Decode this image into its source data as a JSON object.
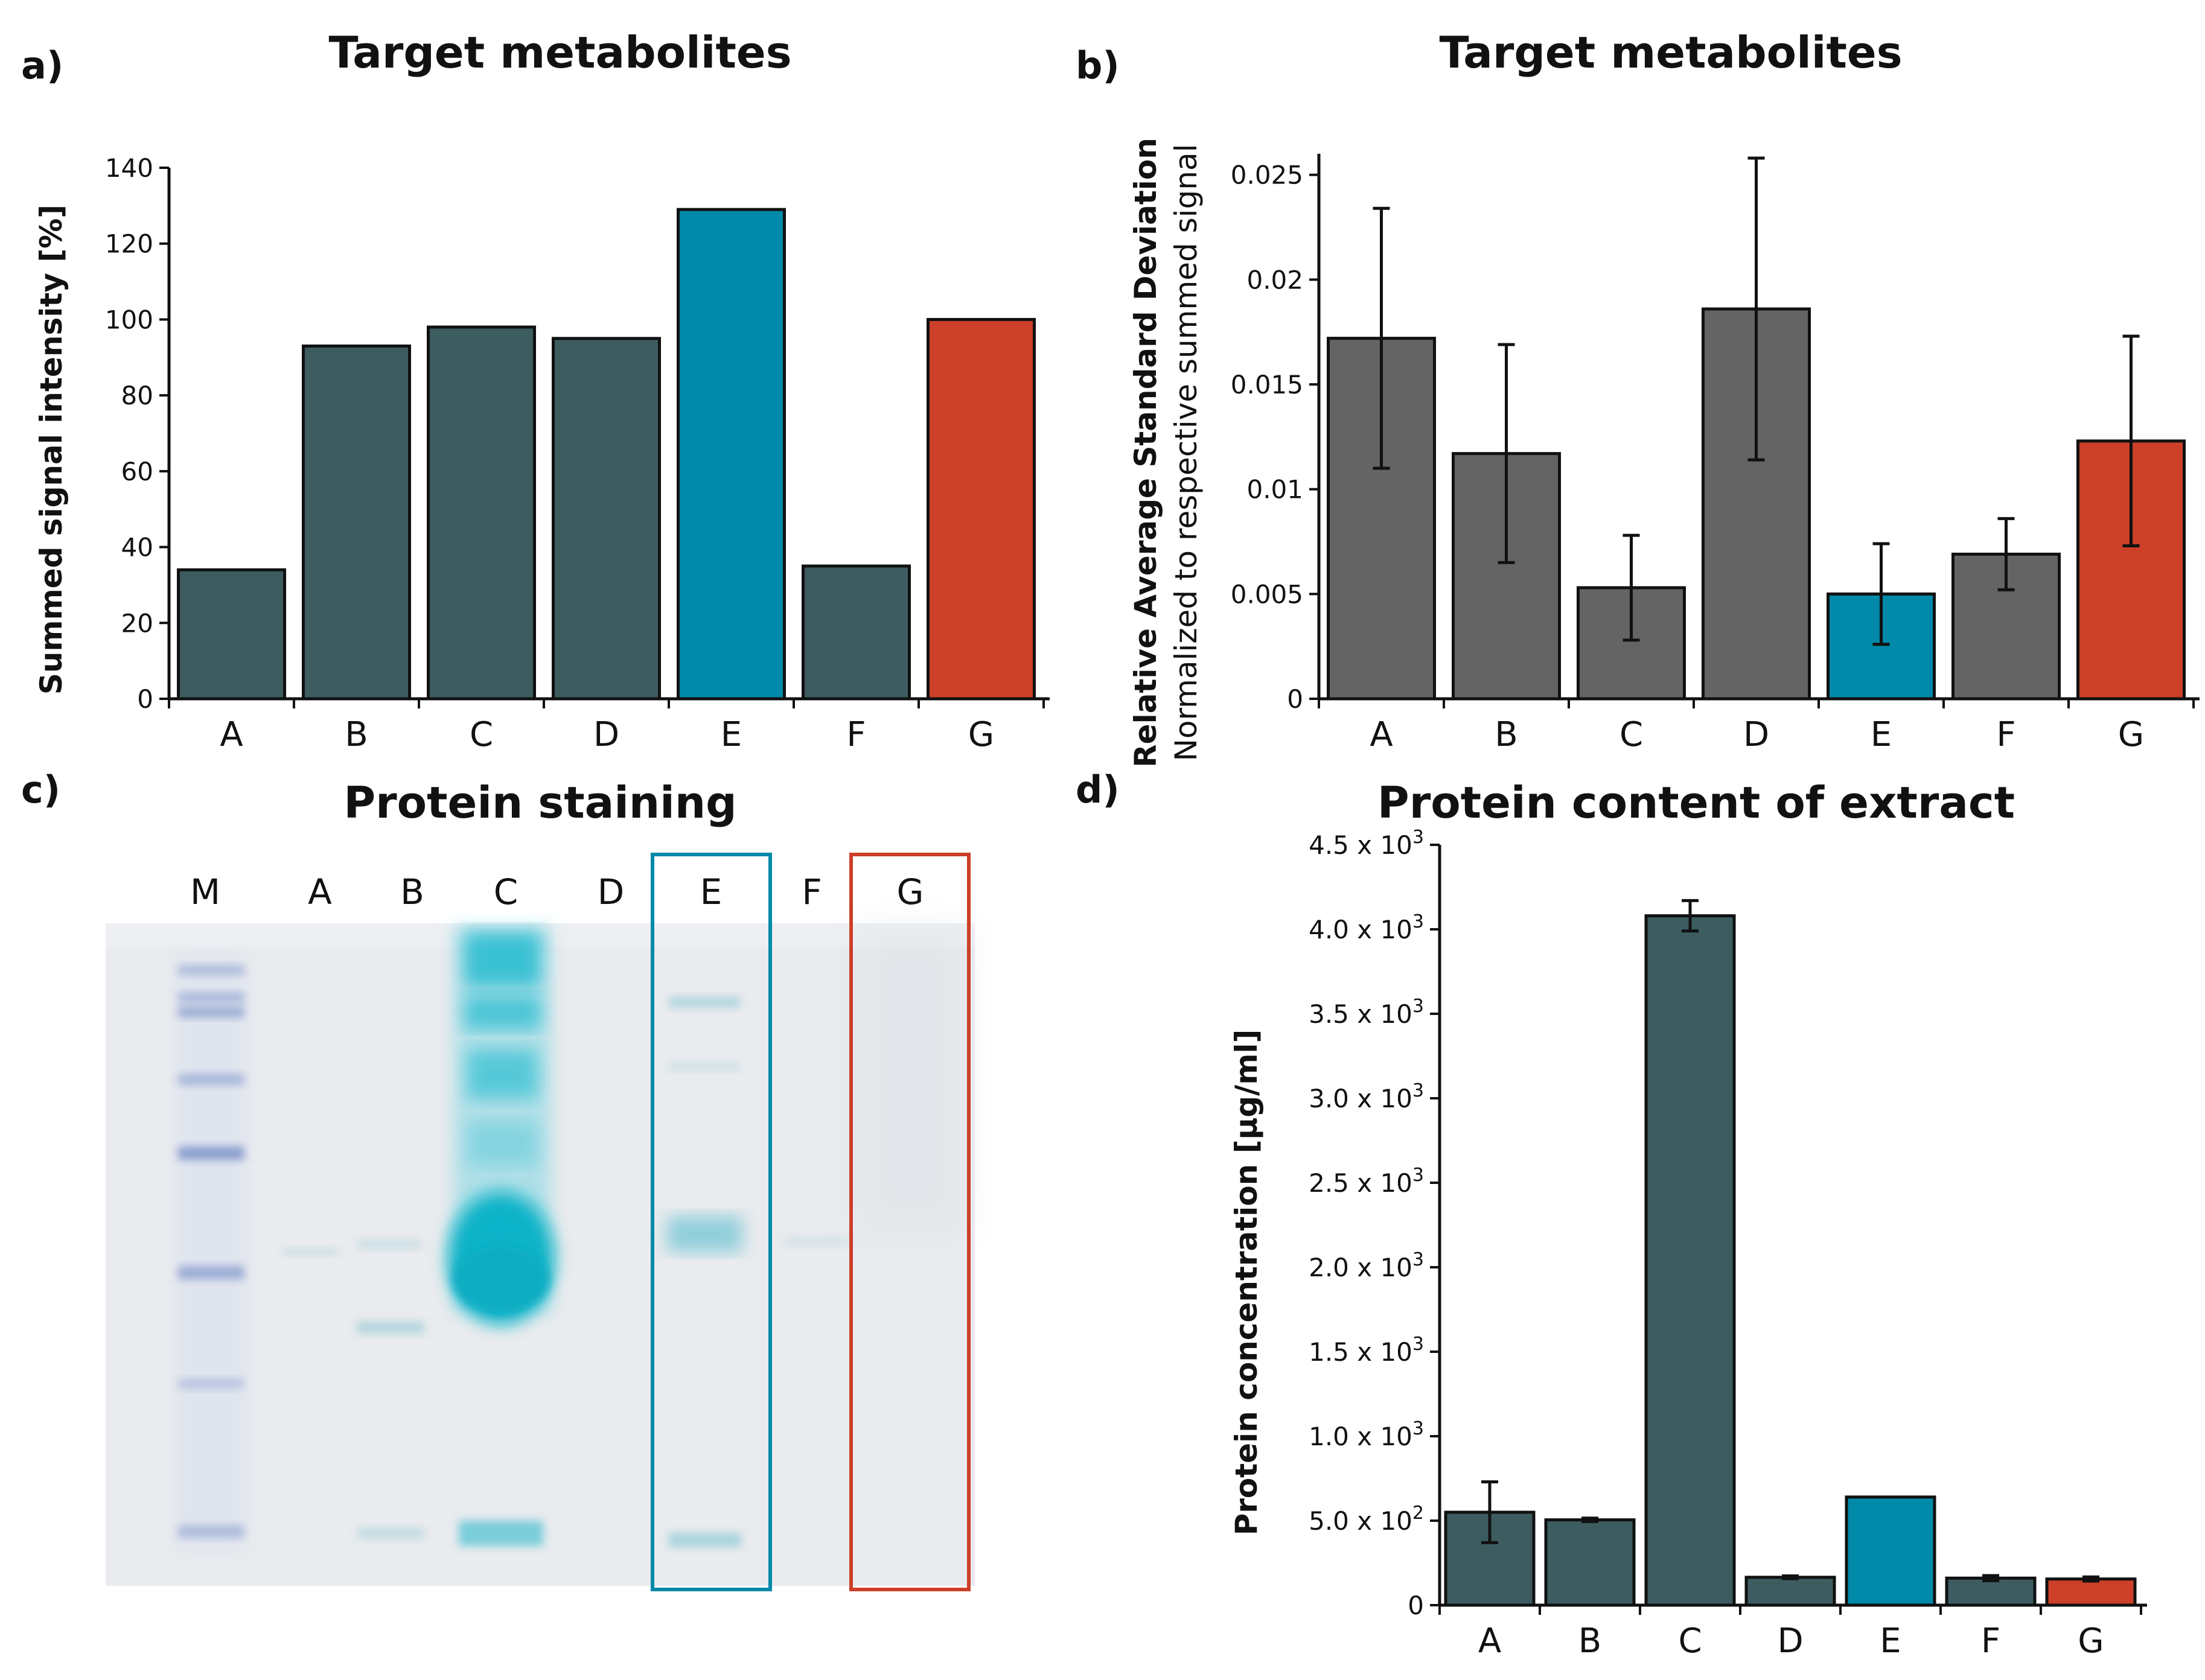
{
  "colors": {
    "dark_teal": "#3c5c60",
    "blue": "#0089a8",
    "red": "#cc3f28",
    "gray": "#646464",
    "axis": "#111111",
    "gel_bg": "#e9ebee",
    "stain": "#17b3c8",
    "marker": "#6e86c4"
  },
  "panels": {
    "a": {
      "label": "a)",
      "title": "Target metabolites"
    },
    "b": {
      "label": "b)",
      "title": "Target metabolites"
    },
    "c": {
      "label": "c)",
      "title": "Protein staining",
      "lanes": [
        "M",
        "A",
        "B",
        "C",
        "D",
        "E",
        "F",
        "G"
      ]
    },
    "d": {
      "label": "d)",
      "title": "Protein content of extract"
    }
  },
  "chart_data": [
    {
      "id": "a",
      "type": "bar",
      "title": "Target metabolites",
      "categories": [
        "A",
        "B",
        "C",
        "D",
        "E",
        "F",
        "G"
      ],
      "values": [
        34,
        93,
        98,
        95,
        129,
        35,
        100
      ],
      "bar_colors": [
        "dark_teal",
        "dark_teal",
        "dark_teal",
        "dark_teal",
        "blue",
        "dark_teal",
        "red"
      ],
      "ylabel": "Summed signal intensity [%]",
      "ylim": [
        0,
        140
      ],
      "yticks": [
        "0",
        "20",
        "40",
        "60",
        "80",
        "100",
        "120",
        "140"
      ],
      "ytick_values": [
        0,
        20,
        40,
        60,
        80,
        100,
        120,
        140
      ]
    },
    {
      "id": "b",
      "type": "bar",
      "title": "Target metabolites",
      "categories": [
        "A",
        "B",
        "C",
        "D",
        "E",
        "F",
        "G"
      ],
      "values": [
        0.0172,
        0.0117,
        0.0053,
        0.0186,
        0.005,
        0.0069,
        0.0123
      ],
      "errors": [
        0.0062,
        0.0052,
        0.0025,
        0.0072,
        0.0024,
        0.0017,
        0.005
      ],
      "bar_colors": [
        "gray",
        "gray",
        "gray",
        "gray",
        "blue",
        "gray",
        "red"
      ],
      "ylabel": "Relative Average Standard Deviation",
      "ylabel2": "Normalized to respective summed signal",
      "ylim": [
        0,
        0.026
      ],
      "yticks": [
        "0",
        "0.005",
        "0.01",
        "0.015",
        "0.02",
        "0.025"
      ],
      "ytick_values": [
        0,
        0.005,
        0.01,
        0.015,
        0.02,
        0.025
      ]
    },
    {
      "id": "d",
      "type": "bar",
      "title": "Protein content of extract",
      "categories": [
        "A",
        "B",
        "C",
        "D",
        "E",
        "F",
        "G"
      ],
      "values": [
        550,
        505,
        4080,
        165,
        640,
        160,
        155
      ],
      "errors": [
        180,
        10,
        90,
        8,
        0,
        15,
        12
      ],
      "bar_colors": [
        "dark_teal",
        "dark_teal",
        "dark_teal",
        "dark_teal",
        "blue",
        "dark_teal",
        "red"
      ],
      "ylabel": "Protein concentration [µg/ml]",
      "ylim": [
        0,
        4500
      ],
      "ytick_values": [
        0,
        500,
        1000,
        1500,
        2000,
        2500,
        3000,
        3500,
        4000,
        4500
      ],
      "yticks_mantissa": [
        "0",
        "5.0 x 10",
        "1.0 x 10",
        "1.5 x 10",
        "2.0 x 10",
        "2.5 x 10",
        "3.0 x 10",
        "3.5 x 10",
        "4.0 x 10",
        "4.5 x 10"
      ],
      "yticks_exponent": [
        "",
        "2",
        "3",
        "3",
        "3",
        "3",
        "3",
        "3",
        "3",
        "3"
      ]
    }
  ]
}
